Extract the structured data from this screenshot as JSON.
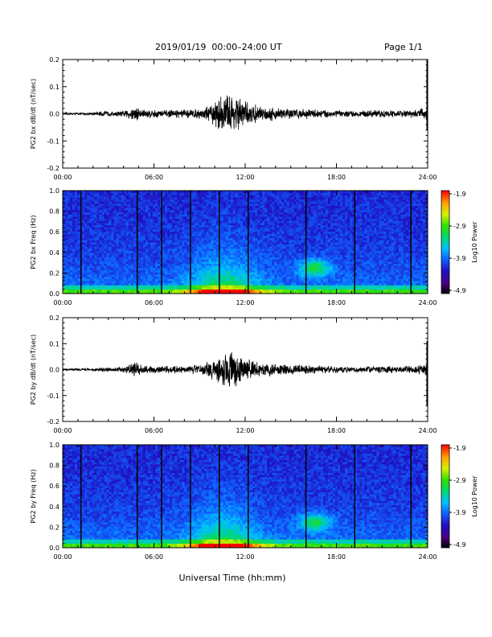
{
  "header": {
    "title": "2019/01/19  00:00–24:00 UT",
    "page": "Page 1/1"
  },
  "chart_data": [
    {
      "type": "line",
      "ylabel": "PG2 bx dB/dt (nT/sec)",
      "x_ticks": [
        "00:00",
        "06:00",
        "12:00",
        "18:00",
        "24:00"
      ],
      "xlim": [
        0,
        24
      ],
      "ylim": [
        -0.2,
        0.2
      ],
      "y_ticks": [
        "0.2",
        "0.1",
        "0.0",
        "-0.1",
        "-0.2"
      ],
      "envelope": {
        "x": [
          0,
          1,
          2,
          2.8,
          3.2,
          4,
          4.8,
          5.2,
          6,
          7,
          8,
          9,
          9.8,
          10.4,
          11,
          11.6,
          12,
          13,
          14,
          15,
          16,
          17,
          18,
          19,
          20,
          21,
          22,
          23,
          23.9
        ],
        "amplitude": [
          0.004,
          0.005,
          0.006,
          0.012,
          0.008,
          0.012,
          0.035,
          0.02,
          0.018,
          0.015,
          0.018,
          0.02,
          0.04,
          0.075,
          0.085,
          0.07,
          0.05,
          0.03,
          0.028,
          0.022,
          0.02,
          0.018,
          0.015,
          0.012,
          0.014,
          0.015,
          0.014,
          0.016,
          0.025
        ]
      },
      "spikes": [
        {
          "x": 23.95,
          "min": -0.06,
          "max": 0.2
        }
      ]
    },
    {
      "type": "heatmap",
      "ylabel": "PG2 bx Freq (Hz)",
      "x_ticks": [
        "00:00",
        "06:00",
        "12:00",
        "18:00",
        "24:00"
      ],
      "xlim": [
        0,
        24
      ],
      "ylim": [
        0,
        1.0
      ],
      "y_ticks": [
        "1.0",
        "0.8",
        "0.6",
        "0.4",
        "0.2",
        "0.0"
      ],
      "colorbar": {
        "label": "Log10 Power",
        "ticks": [
          "-1.9",
          "-2.9",
          "-3.9",
          "-4.9"
        ],
        "range": [
          -4.9,
          -1.9
        ]
      },
      "gap_lines_hours": [
        1.2,
        4.9,
        6.5,
        8.4,
        10.3,
        12.2,
        16.0,
        19.2,
        22.9
      ]
    },
    {
      "type": "line",
      "ylabel": "PG2 by dB/dt (nT/sec)",
      "x_ticks": [
        "00:00",
        "06:00",
        "12:00",
        "18:00",
        "24:00"
      ],
      "xlim": [
        0,
        24
      ],
      "ylim": [
        -0.2,
        0.2
      ],
      "y_ticks": [
        "0.2",
        "0.1",
        "0.0",
        "-0.1",
        "-0.2"
      ],
      "envelope": {
        "x": [
          0,
          1,
          2,
          2.8,
          3.2,
          4,
          4.8,
          5.2,
          6,
          7,
          8,
          9,
          9.8,
          10.4,
          11,
          11.6,
          12,
          13,
          14,
          15,
          16,
          17,
          18,
          19,
          20,
          21,
          22,
          23,
          23.9
        ],
        "amplitude": [
          0.004,
          0.005,
          0.006,
          0.012,
          0.008,
          0.012,
          0.03,
          0.018,
          0.016,
          0.015,
          0.018,
          0.02,
          0.04,
          0.07,
          0.075,
          0.07,
          0.05,
          0.03,
          0.028,
          0.022,
          0.02,
          0.018,
          0.015,
          0.012,
          0.014,
          0.015,
          0.014,
          0.016,
          0.025
        ]
      },
      "spikes": [
        {
          "x": 23.95,
          "min": -0.14,
          "max": 0.11
        }
      ]
    },
    {
      "type": "heatmap",
      "ylabel": "PG2 by Freq (Hz)",
      "x_ticks": [
        "00:00",
        "06:00",
        "12:00",
        "18:00",
        "24:00"
      ],
      "xlim": [
        0,
        24
      ],
      "ylim": [
        0,
        1.0
      ],
      "y_ticks": [
        "1.0",
        "0.8",
        "0.6",
        "0.4",
        "0.2",
        "0.0"
      ],
      "colorbar": {
        "label": "Log10 Power",
        "ticks": [
          "-1.9",
          "-2.9",
          "-3.9",
          "-4.9"
        ],
        "range": [
          -4.9,
          -1.9
        ]
      },
      "gap_lines_hours": [
        1.2,
        4.9,
        6.5,
        8.4,
        10.3,
        12.2,
        16.0,
        19.2,
        22.9
      ]
    }
  ],
  "xaxis_label": "Universal Time (hh:mm)"
}
